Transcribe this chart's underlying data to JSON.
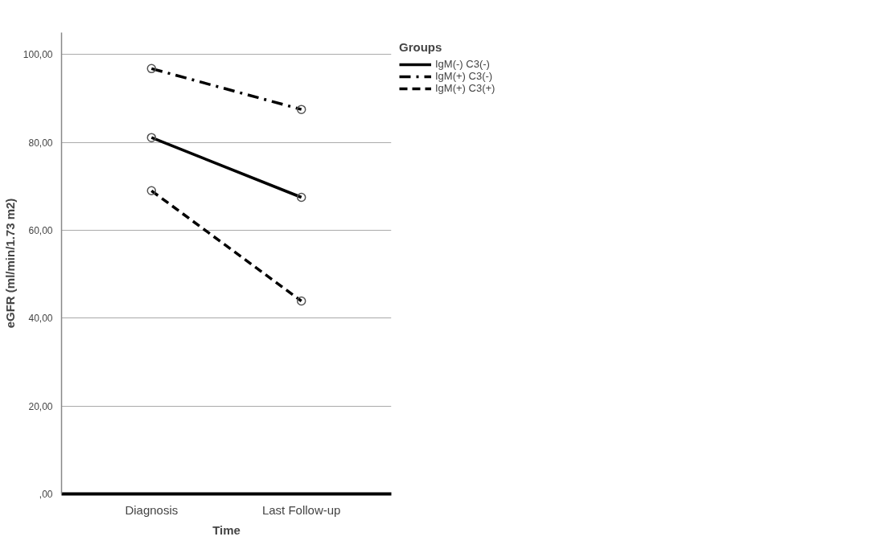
{
  "chart_data": {
    "type": "line",
    "xlabel": "Time",
    "ylabel": "eGFR (ml/min/1.73 m2)",
    "legend_title": "Groups",
    "categories": [
      "Diagnosis",
      "Last Follow-up"
    ],
    "series": [
      {
        "name": "IgM(-) C3(-)",
        "color": "#000000",
        "line_style": "solid",
        "values": [
          81.1,
          67.5
        ]
      },
      {
        "name": "IgM(+) C3(-)",
        "color": "#000000",
        "line_style": "dashdot",
        "values": [
          96.8,
          87.5
        ]
      },
      {
        "name": "IgM(+) C3(+)",
        "color": "#000000",
        "line_style": "dashed",
        "values": [
          69.0,
          43.9
        ]
      }
    ],
    "ylim": [
      0,
      105
    ],
    "yticks": [
      {
        "value": 0,
        "label": ",00"
      },
      {
        "value": 20,
        "label": "20,00"
      },
      {
        "value": 40,
        "label": "40,00"
      },
      {
        "value": 60,
        "label": "60,00"
      },
      {
        "value": 80,
        "label": "80,00"
      },
      {
        "value": 100,
        "label": "100,00"
      }
    ],
    "grid": "y",
    "legend": "top right",
    "marker": "circle"
  }
}
